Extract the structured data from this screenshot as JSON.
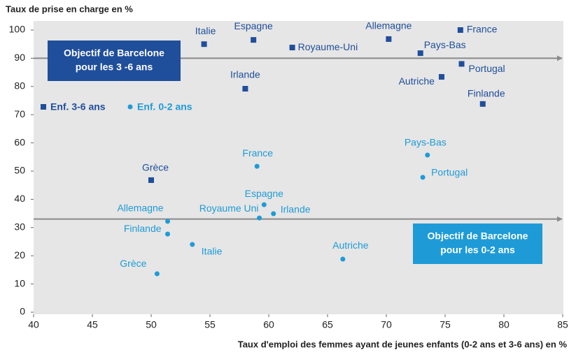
{
  "chart_data": {
    "type": "scatter",
    "y_label": "Taux de prise en charge en %",
    "x_label": "Taux d'emploi des femmes ayant de jeunes enfants (0-2 ans et 3-6 ans) en %",
    "xlim": [
      40,
      85
    ],
    "xticks": [
      40,
      45,
      50,
      55,
      60,
      65,
      70,
      75,
      80,
      85
    ],
    "ylim": [
      0,
      100
    ],
    "yticks": [
      0,
      10,
      20,
      30,
      40,
      50,
      60,
      70,
      80,
      90,
      100
    ],
    "series": [
      {
        "name": "Enf. 3-6 ans",
        "color": "#1f4e9b",
        "marker": "square",
        "labels": [
          "Italie",
          "Espagne",
          "Royaume-Uni",
          "Allemagne",
          "France",
          "Pays-Bas",
          "Portugal",
          "Autriche",
          "Irlande",
          "Finlande",
          "Grèce"
        ],
        "x": [
          54.5,
          58.7,
          62.0,
          70.2,
          76.3,
          72.9,
          76.4,
          74.7,
          58.0,
          78.2,
          50.0
        ],
        "values": [
          95,
          96.5,
          93.8,
          96.8,
          100,
          91.8,
          88,
          83.4,
          79.2,
          73.8,
          46.8
        ]
      },
      {
        "name": "Enf. 0-2 ans",
        "color": "#1e9bd7",
        "marker": "circle",
        "labels": [
          "France",
          "Pays-Bas",
          "Portugal",
          "Espagne",
          "Irlande",
          "Royaume  Uni",
          "Allemagne",
          "Finlande",
          "Italie",
          "Autriche",
          "Grèce"
        ],
        "x": [
          59.0,
          73.5,
          73.1,
          59.6,
          60.4,
          59.2,
          51.4,
          51.4,
          53.5,
          66.3,
          50.5
        ],
        "values": [
          51.7,
          55.7,
          47.8,
          38.1,
          34.9,
          33.4,
          32.2,
          27.7,
          24.0,
          18.8,
          13.6
        ]
      }
    ],
    "reference_lines": [
      {
        "value": 90,
        "color": "#1f4e9b",
        "label_lines": [
          "Objectif de Barcelone",
          "pour les 3 -6 ans"
        ]
      },
      {
        "value": 33,
        "color": "#1e9bd7",
        "label_lines": [
          "Objectif de Barcelone",
          "pour les 0-2 ans"
        ]
      }
    ]
  }
}
